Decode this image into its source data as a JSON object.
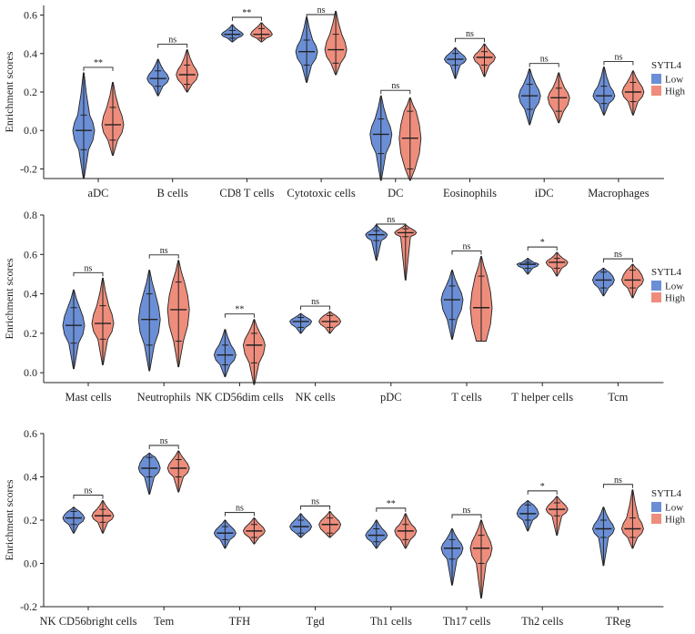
{
  "figure": {
    "legend_title": "SYTL4"
  },
  "colors": {
    "low": "#6b8fd6",
    "high": "#ee8d7c"
  },
  "chart_data": [
    {
      "type": "violin",
      "ylabel": "Enrichment scores",
      "ylim": [
        -0.25,
        0.65
      ],
      "yticks": [
        -0.2,
        0.0,
        0.2,
        0.4,
        0.6
      ],
      "ytick_labels": [
        "-0.2",
        "0.0",
        "0.2",
        "0.4",
        "0.6"
      ],
      "legend": {
        "title": "SYTL4",
        "entries": [
          "Low",
          "High"
        ],
        "placement": "right"
      },
      "categories": [
        "aDC",
        "B cells",
        "CD8 T cells",
        "Cytotoxic cells",
        "DC",
        "Eosinophils",
        "iDC",
        "Macrophages"
      ],
      "significance": [
        "**",
        "ns",
        "**",
        "ns",
        "ns",
        "ns",
        "ns",
        "ns"
      ],
      "series": [
        {
          "name": "Low",
          "medians": [
            0.0,
            0.27,
            0.5,
            0.41,
            -0.02,
            0.37,
            0.18,
            0.18
          ],
          "q1": [
            -0.1,
            0.23,
            0.48,
            0.34,
            -0.12,
            0.34,
            0.11,
            0.14
          ],
          "q3": [
            0.08,
            0.31,
            0.52,
            0.47,
            0.06,
            0.4,
            0.24,
            0.23
          ],
          "min": [
            -0.25,
            0.18,
            0.46,
            0.25,
            -0.26,
            0.27,
            0.03,
            0.08
          ],
          "max": [
            0.3,
            0.37,
            0.55,
            0.59,
            0.18,
            0.43,
            0.32,
            0.33
          ]
        },
        {
          "name": "High",
          "medians": [
            0.03,
            0.29,
            0.5,
            0.42,
            -0.04,
            0.38,
            0.17,
            0.2
          ],
          "q1": [
            -0.05,
            0.24,
            0.48,
            0.35,
            -0.2,
            0.34,
            0.1,
            0.15
          ],
          "q3": [
            0.12,
            0.34,
            0.53,
            0.5,
            0.1,
            0.41,
            0.22,
            0.25
          ],
          "min": [
            -0.13,
            0.2,
            0.46,
            0.29,
            -0.26,
            0.28,
            0.04,
            0.08
          ],
          "max": [
            0.25,
            0.42,
            0.56,
            0.62,
            0.17,
            0.45,
            0.3,
            0.31
          ]
        }
      ]
    },
    {
      "type": "violin",
      "ylabel": "Enrichment scores",
      "ylim": [
        -0.05,
        0.8
      ],
      "yticks": [
        0.0,
        0.2,
        0.4,
        0.6,
        0.8
      ],
      "ytick_labels": [
        "0.0",
        "0.2",
        "0.4",
        "0.6",
        "0.8"
      ],
      "legend": {
        "title": "SYTL4",
        "entries": [
          "Low",
          "High"
        ],
        "placement": "right"
      },
      "categories": [
        "Mast cells",
        "Neutrophils",
        "NK CD56dim cells",
        "NK cells",
        "pDC",
        "T cells",
        "T helper cells",
        "Tcm"
      ],
      "significance": [
        "ns",
        "ns",
        "**",
        "ns",
        "ns",
        "ns",
        "*",
        "ns"
      ],
      "series": [
        {
          "name": "Low",
          "medians": [
            0.24,
            0.27,
            0.09,
            0.26,
            0.7,
            0.37,
            0.55,
            0.47
          ],
          "q1": [
            0.15,
            0.14,
            0.04,
            0.23,
            0.67,
            0.27,
            0.53,
            0.43
          ],
          "q3": [
            0.33,
            0.4,
            0.14,
            0.28,
            0.72,
            0.44,
            0.56,
            0.51
          ],
          "min": [
            0.02,
            0.01,
            -0.02,
            0.2,
            0.57,
            0.17,
            0.5,
            0.39
          ],
          "max": [
            0.42,
            0.52,
            0.22,
            0.3,
            0.75,
            0.52,
            0.58,
            0.53
          ]
        },
        {
          "name": "High",
          "medians": [
            0.25,
            0.32,
            0.14,
            0.26,
            0.71,
            0.33,
            0.56,
            0.47
          ],
          "q1": [
            0.17,
            0.16,
            0.05,
            0.23,
            0.69,
            0.16,
            0.53,
            0.43
          ],
          "q3": [
            0.34,
            0.46,
            0.2,
            0.29,
            0.73,
            0.49,
            0.58,
            0.52
          ],
          "min": [
            0.04,
            0.03,
            -0.06,
            0.2,
            0.47,
            0.16,
            0.49,
            0.38
          ],
          "max": [
            0.48,
            0.57,
            0.27,
            0.31,
            0.75,
            0.59,
            0.61,
            0.55
          ]
        }
      ]
    },
    {
      "type": "violin",
      "ylabel": "Enrichment scores",
      "ylim": [
        -0.2,
        0.6
      ],
      "yticks": [
        -0.2,
        0.0,
        0.2,
        0.4,
        0.6
      ],
      "ytick_labels": [
        "-0.2",
        "0.0",
        "0.2",
        "0.4",
        "0.6"
      ],
      "legend": {
        "title": "SYTL4",
        "entries": [
          "Low",
          "High"
        ],
        "placement": "right"
      },
      "categories": [
        "NK CD56bright cells",
        "Tem",
        "TFH",
        "Tgd",
        "Th1 cells",
        "Th17 cells",
        "Th2 cells",
        "TReg"
      ],
      "significance": [
        "ns",
        "ns",
        "ns",
        "ns",
        "**",
        "ns",
        "*",
        "ns"
      ],
      "series": [
        {
          "name": "Low",
          "medians": [
            0.21,
            0.44,
            0.14,
            0.17,
            0.13,
            0.07,
            0.23,
            0.16
          ],
          "q1": [
            0.18,
            0.4,
            0.11,
            0.14,
            0.1,
            0.02,
            0.2,
            0.12
          ],
          "q3": [
            0.24,
            0.49,
            0.17,
            0.2,
            0.16,
            0.11,
            0.27,
            0.2
          ],
          "min": [
            0.14,
            0.32,
            0.07,
            0.12,
            0.07,
            -0.1,
            0.15,
            -0.01
          ],
          "max": [
            0.26,
            0.51,
            0.2,
            0.23,
            0.2,
            0.16,
            0.29,
            0.26
          ]
        },
        {
          "name": "High",
          "medians": [
            0.22,
            0.44,
            0.15,
            0.18,
            0.15,
            0.07,
            0.25,
            0.16
          ],
          "q1": [
            0.19,
            0.4,
            0.12,
            0.14,
            0.11,
            0.0,
            0.22,
            0.12
          ],
          "q3": [
            0.25,
            0.48,
            0.18,
            0.21,
            0.18,
            0.13,
            0.28,
            0.21
          ],
          "min": [
            0.14,
            0.33,
            0.09,
            0.12,
            0.07,
            -0.16,
            0.13,
            0.07
          ],
          "max": [
            0.29,
            0.52,
            0.21,
            0.24,
            0.23,
            0.2,
            0.31,
            0.34
          ]
        }
      ]
    }
  ]
}
